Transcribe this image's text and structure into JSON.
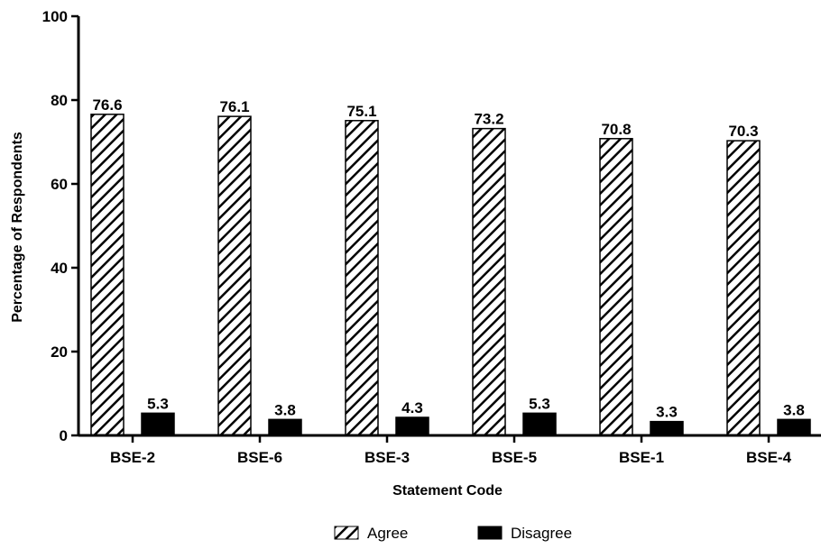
{
  "chart_data": {
    "type": "bar",
    "title": "",
    "xlabel": "Statement Code",
    "ylabel": "Percentage of Respondents",
    "ylim": [
      0,
      100
    ],
    "yticks": [
      0,
      20,
      40,
      60,
      80,
      100
    ],
    "grid": false,
    "legend_position": "bottom-center",
    "categories": [
      "BSE-2",
      "BSE-6",
      "BSE-3",
      "BSE-5",
      "BSE-1",
      "BSE-4"
    ],
    "series": [
      {
        "name": "Agree",
        "values": [
          76.6,
          76.1,
          75.1,
          73.2,
          70.8,
          70.3
        ],
        "labels": [
          "76.6",
          "76.1",
          "75.1",
          "73.2",
          "70.8",
          "70.3"
        ],
        "fill": "hatched",
        "color": "#000000"
      },
      {
        "name": "Disagree",
        "values": [
          5.3,
          3.8,
          4.3,
          5.3,
          3.3,
          3.8
        ],
        "labels": [
          "5.3",
          "3.8",
          "4.3",
          "5.3",
          "3.3",
          "3.8"
        ],
        "fill": "solid",
        "color": "#000000"
      }
    ]
  }
}
